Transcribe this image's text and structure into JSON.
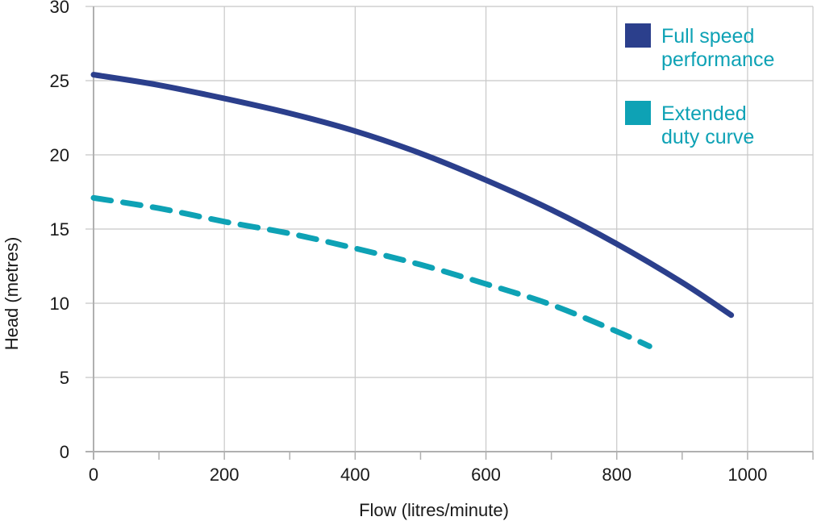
{
  "chart_data": {
    "type": "line",
    "title": "",
    "xlabel": "Flow (litres/minute)",
    "ylabel": "Head (metres)",
    "xlim": [
      0,
      1100
    ],
    "ylim": [
      0,
      30
    ],
    "x_ticks": [
      "0",
      "200",
      "400",
      "600",
      "800",
      "1000"
    ],
    "y_ticks": [
      "0",
      "5",
      "10",
      "15",
      "20",
      "25",
      "30"
    ],
    "grid": true,
    "legend": "top-right",
    "series": [
      {
        "name_lines": [
          "Full speed",
          "performance"
        ],
        "color": "#2b3f8c",
        "dashed": false,
        "x": [
          0,
          100,
          200,
          300,
          400,
          500,
          600,
          700,
          800,
          900,
          975
        ],
        "y": [
          25.4,
          24.7,
          23.8,
          22.8,
          21.6,
          20.1,
          18.3,
          16.3,
          14.0,
          11.4,
          9.2
        ]
      },
      {
        "name_lines": [
          "Extended",
          "duty curve"
        ],
        "color": "#0ea2b5",
        "dashed": true,
        "x": [
          0,
          100,
          200,
          300,
          400,
          500,
          600,
          700,
          800,
          850
        ],
        "y": [
          17.1,
          16.4,
          15.5,
          14.7,
          13.7,
          12.6,
          11.3,
          9.9,
          8.1,
          7.1
        ]
      }
    ]
  }
}
